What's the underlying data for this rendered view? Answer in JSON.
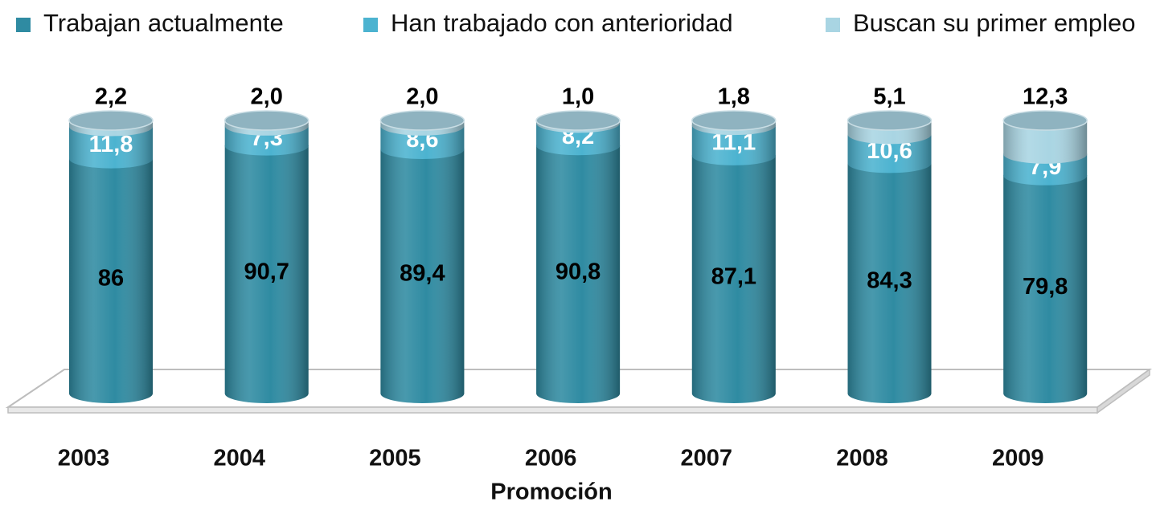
{
  "chart_data": {
    "type": "stacked-cylinder",
    "xlabel": "Promoción",
    "categories": [
      "2003",
      "2004",
      "2005",
      "2006",
      "2007",
      "2008",
      "2009"
    ],
    "series": [
      {
        "name": "Trabajan actualmente",
        "color": "#2f8ba2",
        "values": [
          86,
          90.7,
          89.4,
          90.8,
          87.1,
          84.3,
          79.8
        ],
        "value_labels": [
          "86",
          "90,7",
          "89,4",
          "90,8",
          "87,1",
          "84,3",
          "79,8"
        ]
      },
      {
        "name": "Han trabajado con anterioridad",
        "color": "#4cb3d0",
        "values": [
          11.8,
          7.3,
          8.6,
          8.2,
          11.1,
          10.6,
          7.9
        ],
        "value_labels": [
          "11,8",
          "7,3",
          "8,6",
          "8,2",
          "11,1",
          "10,6",
          "7,9"
        ]
      },
      {
        "name": "Buscan su primer empleo",
        "color": "#a9d5e3",
        "values": [
          2.2,
          2.0,
          2.0,
          1.0,
          1.8,
          5.1,
          12.3
        ],
        "value_labels": [
          "2,2",
          "2,0",
          "2,0",
          "1,0",
          "1,8",
          "5,1",
          "12,3"
        ]
      }
    ],
    "legend": "top"
  }
}
